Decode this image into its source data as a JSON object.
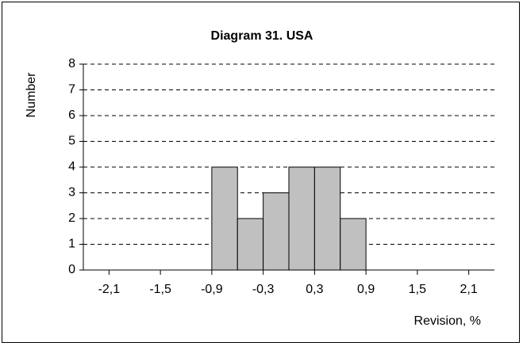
{
  "chart_data": {
    "type": "histogram",
    "title": "Diagram 31.  USA",
    "x_label": "Revision, %",
    "y_label": "Number",
    "bins": [
      -0.9,
      -0.6,
      -0.3,
      0,
      0.3,
      0.6,
      0.9
    ],
    "values": [
      4,
      2,
      3,
      4,
      4,
      2
    ],
    "color": "#c0c0c0",
    "xlim": [
      -2.4,
      2.4
    ],
    "xticks": [
      {
        "value": -2.1,
        "label": "-2,1"
      },
      {
        "value": -1.5,
        "label": "-1,5"
      },
      {
        "value": -0.9,
        "label": "-0,9"
      },
      {
        "value": -0.3,
        "label": "-0,3"
      },
      {
        "value": 0.3,
        "label": "0,3"
      },
      {
        "value": 0.9,
        "label": "0,9"
      },
      {
        "value": 1.5,
        "label": "1,5"
      },
      {
        "value": 2.1,
        "label": "2,1"
      }
    ],
    "ylim": [
      0,
      8
    ],
    "yticks": [
      0,
      1,
      2,
      3,
      4,
      5,
      6,
      7,
      8
    ],
    "grid": true
  }
}
